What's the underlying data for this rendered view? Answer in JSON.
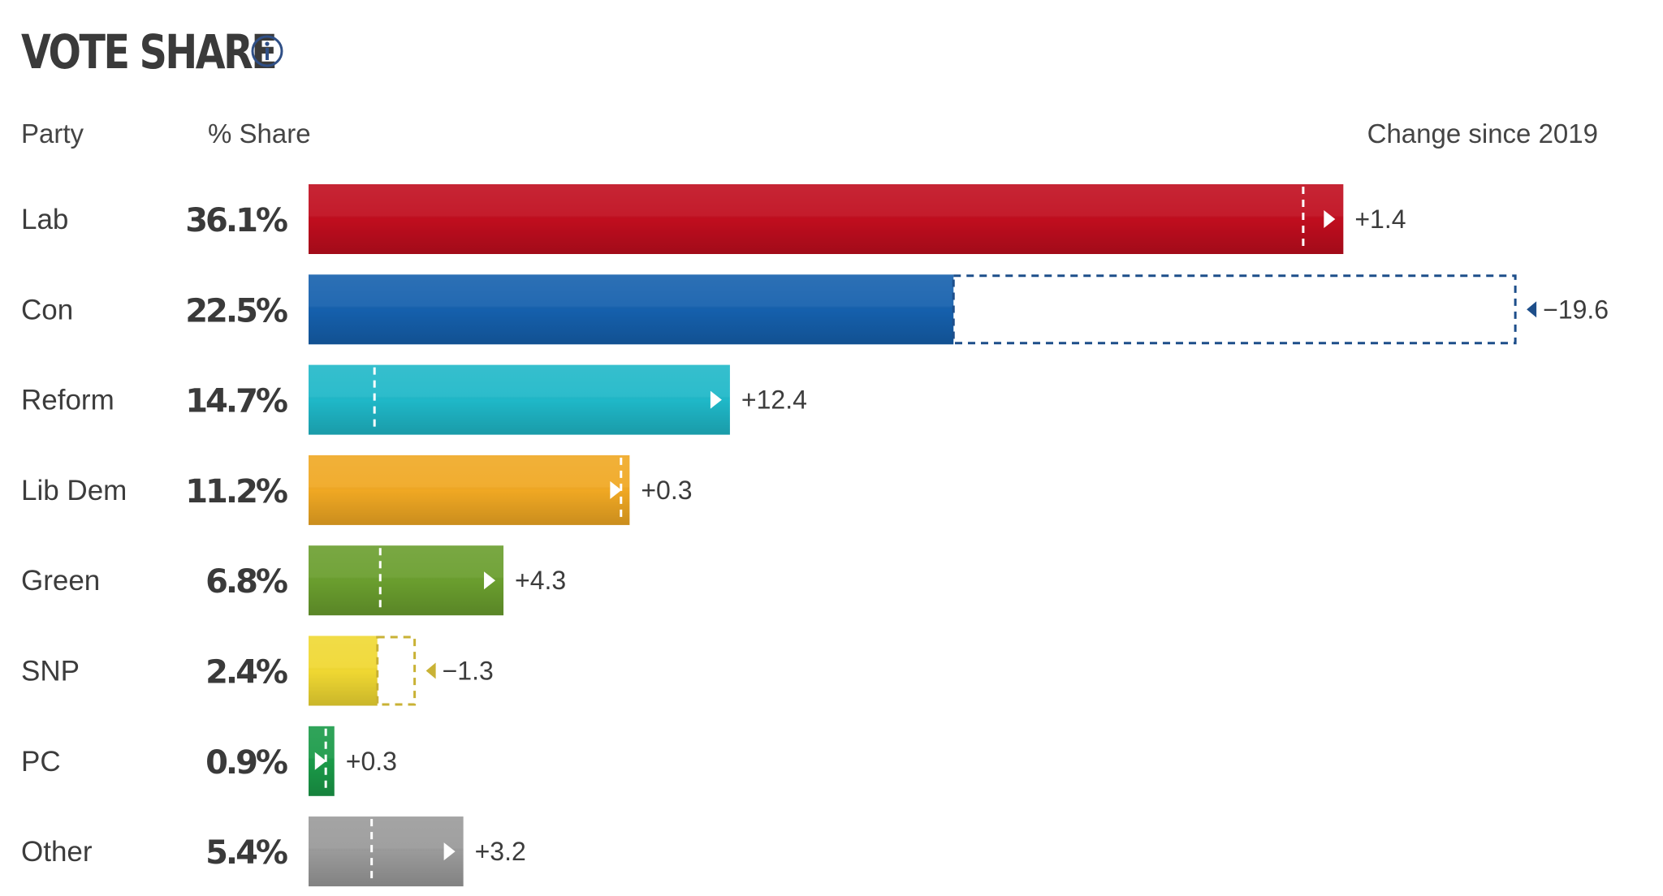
{
  "header": {
    "title": "VOTE SHARE",
    "info_icon": "info-icon",
    "col_party": "Party",
    "col_share": "% Share",
    "col_change": "Change since 2019"
  },
  "chart_data": {
    "type": "bar",
    "orientation": "horizontal",
    "title": "VOTE SHARE",
    "categories": [
      "Lab",
      "Con",
      "Reform",
      "Lib Dem",
      "Green",
      "SNP",
      "PC",
      "Other"
    ],
    "values": [
      36.1,
      22.5,
      14.7,
      11.2,
      6.8,
      2.4,
      0.9,
      5.4
    ],
    "value_labels": [
      "36.1%",
      "22.5%",
      "14.7%",
      "11.2%",
      "6.8%",
      "2.4%",
      "0.9%",
      "5.4%"
    ],
    "change_since_2019": [
      1.4,
      -19.6,
      12.4,
      0.3,
      4.3,
      -1.3,
      0.3,
      3.2
    ],
    "change_labels": [
      "+1.4",
      "−19.6",
      "+12.4",
      "+0.3",
      "+4.3",
      "−1.3",
      "+0.3",
      "+3.2"
    ],
    "colors": [
      "#c00d1e",
      "#1560ad",
      "#1fb8c8",
      "#f0a823",
      "#6a9e2e",
      "#f0d832",
      "#1a9a48",
      "#9a9a9a"
    ],
    "marker_colors": [
      "#ffffff",
      "#1d4e8a",
      "#ffffff",
      "#ffffff",
      "#ffffff",
      "#c9b235",
      "#ffffff",
      "#ffffff"
    ],
    "legend": "none",
    "grid": false
  }
}
